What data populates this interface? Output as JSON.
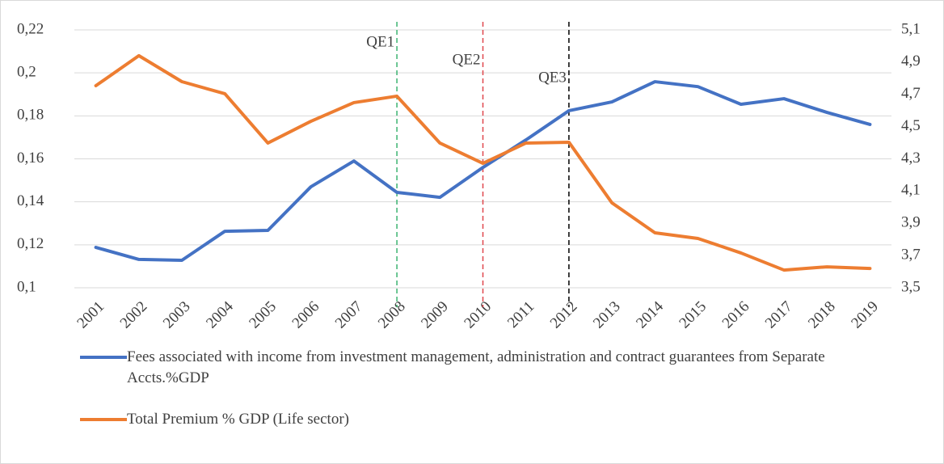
{
  "chart_data": {
    "type": "line",
    "categories": [
      "2001",
      "2002",
      "2003",
      "2004",
      "2005",
      "2006",
      "2007",
      "2008",
      "2009",
      "2010",
      "2011",
      "2012",
      "2013",
      "2014",
      "2015",
      "2016",
      "2017",
      "2018",
      "2019"
    ],
    "series": [
      {
        "name": "Fees associated with income from investment management, administration and contract guarantees from Separate Accts.%GDP",
        "color": "#4472c4",
        "axis": "y",
        "values": [
          0.1188,
          0.1132,
          0.1128,
          0.1263,
          0.1267,
          0.147,
          0.159,
          0.1444,
          0.1421,
          0.156,
          0.1688,
          0.1824,
          0.1865,
          0.1959,
          0.1936,
          0.1854,
          0.188,
          0.1816,
          0.176
        ]
      },
      {
        "name": "Total Premium % GDP (Life sector)",
        "color": "#ed7d31",
        "axis": "y2",
        "values": [
          4.754,
          4.94,
          4.779,
          4.704,
          4.398,
          4.533,
          4.649,
          4.689,
          4.398,
          4.272,
          4.398,
          4.403,
          4.027,
          3.841,
          3.806,
          3.716,
          3.61,
          3.63,
          3.62
        ]
      }
    ],
    "ylim": [
      0.1,
      0.22
    ],
    "yticks": [
      {
        "value": 0.1,
        "label": "0,1"
      },
      {
        "value": 0.12,
        "label": "0,12"
      },
      {
        "value": 0.14,
        "label": "0,14"
      },
      {
        "value": 0.16,
        "label": "0,16"
      },
      {
        "value": 0.18,
        "label": "0,18"
      },
      {
        "value": 0.2,
        "label": "0,2"
      },
      {
        "value": 0.22,
        "label": "0,22"
      }
    ],
    "y2lim": [
      3.5,
      5.1
    ],
    "y2ticks": [
      {
        "value": 3.5,
        "label": "3,5"
      },
      {
        "value": 3.7,
        "label": "3,7"
      },
      {
        "value": 3.9,
        "label": "3,9"
      },
      {
        "value": 4.1,
        "label": "4,1"
      },
      {
        "value": 4.3,
        "label": "4,3"
      },
      {
        "value": 4.5,
        "label": "4,5"
      },
      {
        "value": 4.7,
        "label": "4,7"
      },
      {
        "value": 4.9,
        "label": "4,9"
      },
      {
        "value": 5.1,
        "label": "5,1"
      }
    ],
    "grid": true,
    "annotations": [
      {
        "text": "QE1",
        "at": "2008",
        "color": "#3cb371"
      },
      {
        "text": "QE2",
        "at": "2010",
        "color": "#e0474c"
      },
      {
        "text": "QE3",
        "at": "2012",
        "color": "#000000"
      }
    ]
  }
}
